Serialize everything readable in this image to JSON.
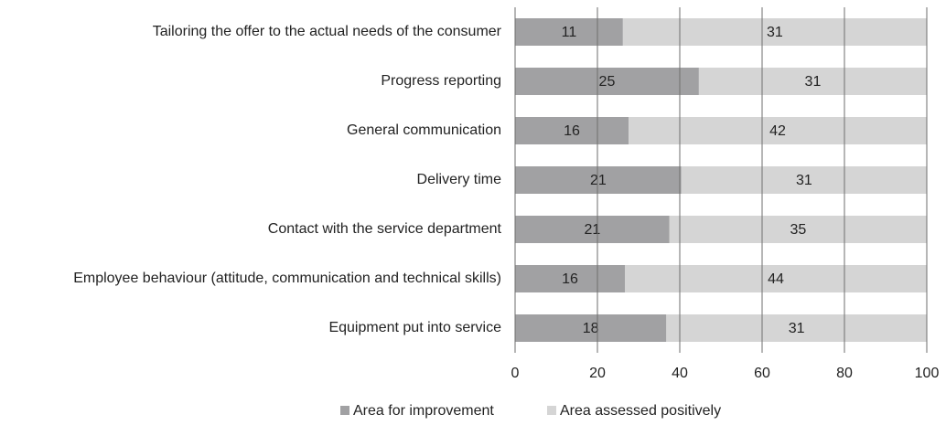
{
  "chart_data": {
    "type": "bar",
    "orientation": "horizontal",
    "stacked": true,
    "normalize": true,
    "categories": [
      "Tailoring the offer to the actual needs of the consumer",
      "Progress reporting",
      "General communication",
      "Delivery time",
      "Contact with the service department",
      "Employee behaviour (attitude, communication and technical skills)",
      "Equipment put into service"
    ],
    "series": [
      {
        "name": "Area for improvement",
        "color": "#a1a1a3",
        "values": [
          11,
          25,
          16,
          21,
          21,
          16,
          18
        ]
      },
      {
        "name": "Area assessed positively",
        "color": "#d5d5d5",
        "values": [
          31,
          31,
          42,
          31,
          35,
          44,
          31
        ]
      }
    ],
    "xlim": [
      0,
      100
    ],
    "xticks": [
      0,
      20,
      40,
      60,
      80,
      100
    ],
    "grid": true,
    "legend": "bottom"
  }
}
